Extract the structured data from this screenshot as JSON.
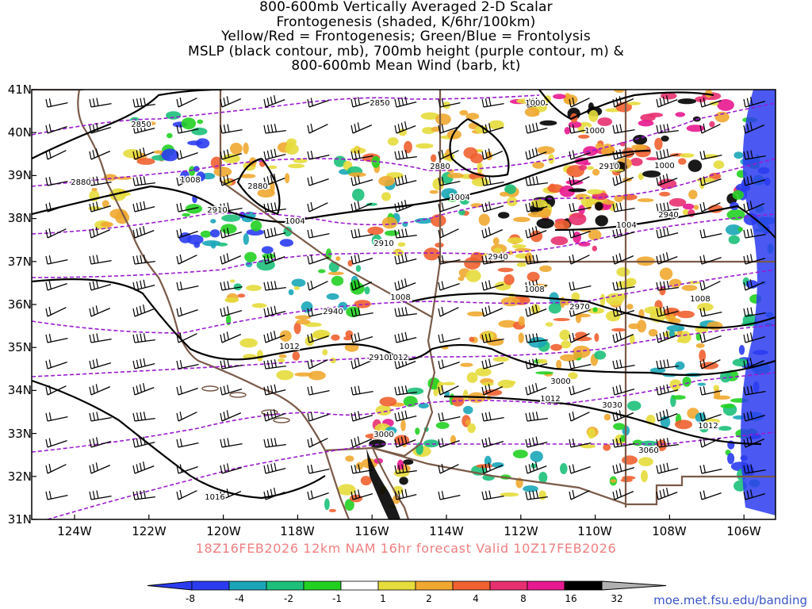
{
  "title": {
    "line1": "800-600mb Vertically Averaged 2-D Scalar",
    "line2": "Frontogenesis (shaded, K/6hr/100km)",
    "line3": "Yellow/Red = Frontogenesis;  Green/Blue = Frontolysis",
    "line4": "MSLP (black contour, mb), 700mb height (purple contour, m) &",
    "line5": "800-600mb Mean Wind (barb, kt)"
  },
  "valid_text": "18Z16FEB2026 12km NAM 16hr forecast Valid 10Z17FEB2026",
  "credit": "moe.met.fsu.edu/banding",
  "axes": {
    "lat_labels": [
      "41N",
      "40N",
      "39N",
      "38N",
      "37N",
      "36N",
      "35N",
      "34N",
      "33N",
      "32N",
      "31N"
    ],
    "lon_labels": [
      "124W",
      "122W",
      "120W",
      "118W",
      "116W",
      "114W",
      "112W",
      "110W",
      "108W",
      "106W"
    ],
    "lat_range": [
      31,
      41
    ],
    "lon_range": [
      -125,
      -105
    ]
  },
  "colorbar": {
    "ticks": [
      "-8",
      "-4",
      "-2",
      "-1",
      "1",
      "2",
      "4",
      "8",
      "16",
      "32"
    ],
    "colors": [
      "#2b3cf0",
      "#1aa6b8",
      "#1cc07a",
      "#22d022",
      "#ffffff",
      "#e6dc3c",
      "#f0a830",
      "#f06030",
      "#e83070",
      "#e81890",
      "#000000",
      "#b0b0b0"
    ]
  },
  "mslp_labels": [
    "1000",
    "1000",
    "1000",
    "1004",
    "1004",
    "1004",
    "1008",
    "1008",
    "1008",
    "1008",
    "1012",
    "1012",
    "1012",
    "1012",
    "1016"
  ],
  "height_labels": [
    "2850",
    "2850",
    "2880",
    "2880",
    "2880",
    "2910",
    "2910",
    "2910",
    "2940",
    "2940",
    "2940",
    "2970",
    "3000",
    "3000",
    "3030",
    "3060",
    "2910"
  ],
  "colors": {
    "mslp_contour": "#000000",
    "height_contour": "#9a1ad0",
    "state_border": "#7a5a48",
    "barb": "#000000"
  }
}
